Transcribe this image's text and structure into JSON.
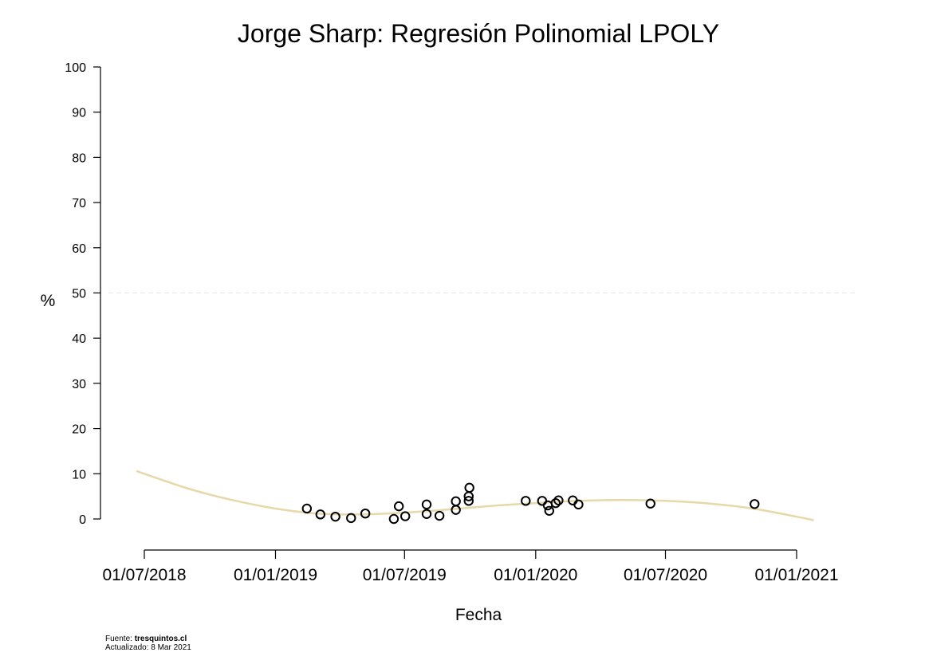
{
  "chart_data": {
    "type": "scatter",
    "title": "Jorge Sharp: Regresión Polinomial LPOLY",
    "xlabel": "Fecha",
    "ylabel": "%",
    "ylim": [
      0,
      100
    ],
    "xlim": [
      "2018-06-15",
      "2021-01-31"
    ],
    "y_ticks": [
      "0",
      "10",
      "20",
      "30",
      "40",
      "50",
      "60",
      "70",
      "80",
      "90",
      "100"
    ],
    "x_ticks": [
      "2018-07-01",
      "2019-01-01",
      "2019-07-01",
      "2020-01-01",
      "2020-07-01",
      "2021-01-01"
    ],
    "x_tick_labels": [
      "01/07/2018",
      "01/01/2019",
      "01/07/2019",
      "01/01/2020",
      "01/07/2020",
      "01/01/2021"
    ],
    "reference_line": {
      "y": 50,
      "style": "dashed"
    },
    "grid": false,
    "legend": "none",
    "points": [
      {
        "x": "2019-02-14",
        "y": 2.3
      },
      {
        "x": "2019-03-05",
        "y": 1.0
      },
      {
        "x": "2019-03-26",
        "y": 0.5
      },
      {
        "x": "2019-04-17",
        "y": 0.2
      },
      {
        "x": "2019-05-07",
        "y": 1.2
      },
      {
        "x": "2019-06-16",
        "y": 0.0
      },
      {
        "x": "2019-06-23",
        "y": 2.8
      },
      {
        "x": "2019-07-02",
        "y": 0.6
      },
      {
        "x": "2019-08-01",
        "y": 1.1
      },
      {
        "x": "2019-08-01",
        "y": 3.2
      },
      {
        "x": "2019-08-19",
        "y": 0.7
      },
      {
        "x": "2019-09-11",
        "y": 2.0
      },
      {
        "x": "2019-09-11",
        "y": 3.9
      },
      {
        "x": "2019-09-29",
        "y": 4.0
      },
      {
        "x": "2019-09-29",
        "y": 5.0
      },
      {
        "x": "2019-09-30",
        "y": 6.9
      },
      {
        "x": "2019-12-18",
        "y": 4.0
      },
      {
        "x": "2020-01-10",
        "y": 4.0
      },
      {
        "x": "2020-01-18",
        "y": 3.0
      },
      {
        "x": "2020-01-20",
        "y": 1.8
      },
      {
        "x": "2020-01-29",
        "y": 3.5
      },
      {
        "x": "2020-02-02",
        "y": 4.1
      },
      {
        "x": "2020-02-22",
        "y": 4.1
      },
      {
        "x": "2020-03-01",
        "y": 3.2
      },
      {
        "x": "2020-06-10",
        "y": 3.4
      },
      {
        "x": "2020-11-03",
        "y": 3.3
      }
    ],
    "trend": {
      "name": "LPOLY",
      "color": "#e6d8a8",
      "x": [
        "2018-06-20",
        "2018-09-01",
        "2018-11-01",
        "2019-01-01",
        "2019-03-01",
        "2019-05-01",
        "2019-07-01",
        "2019-09-01",
        "2019-11-01",
        "2020-01-01",
        "2020-03-01",
        "2020-05-01",
        "2020-07-01",
        "2020-09-01",
        "2020-11-01",
        "2021-01-01",
        "2021-01-25"
      ],
      "y": [
        10.6,
        6.7,
        4.2,
        2.3,
        1.2,
        1.0,
        1.4,
        2.1,
        2.9,
        3.5,
        4.0,
        4.2,
        4.0,
        3.4,
        2.3,
        0.5,
        -0.3
      ]
    },
    "point_color": "#000000"
  },
  "footer": {
    "source_label": "Fuente: ",
    "source_name": "tresquintos.cl",
    "updated": "Actualizado: 8 Mar 2021"
  }
}
